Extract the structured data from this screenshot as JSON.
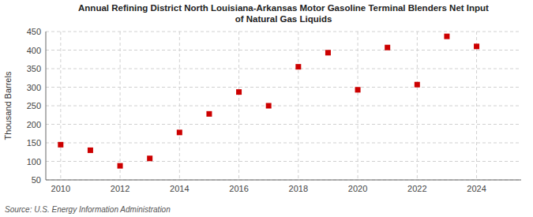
{
  "chart_data": {
    "type": "scatter",
    "title": "Annual Refining District North Louisiana-Arkansas Motor Gasoline Terminal Blenders Net Input\nof Natural Gas Liquids",
    "ylabel": "Thousand Barrels",
    "source": "Source: U.S. Energy Information Administration",
    "x": [
      2010,
      2011,
      2012,
      2013,
      2014,
      2015,
      2016,
      2017,
      2018,
      2019,
      2020,
      2021,
      2022,
      2023,
      2024
    ],
    "values": [
      145,
      130,
      88,
      108,
      178,
      228,
      287,
      250,
      355,
      393,
      293,
      407,
      307,
      437,
      410
    ],
    "color": "#cc0000",
    "marker": "square",
    "grid": true,
    "xlim": [
      2009.5,
      2025.5
    ],
    "xticks": [
      2010,
      2012,
      2014,
      2016,
      2018,
      2020,
      2022,
      2024
    ],
    "ylim": [
      50,
      450
    ],
    "yticks": [
      50,
      100,
      150,
      200,
      250,
      300,
      350,
      400,
      450
    ]
  }
}
